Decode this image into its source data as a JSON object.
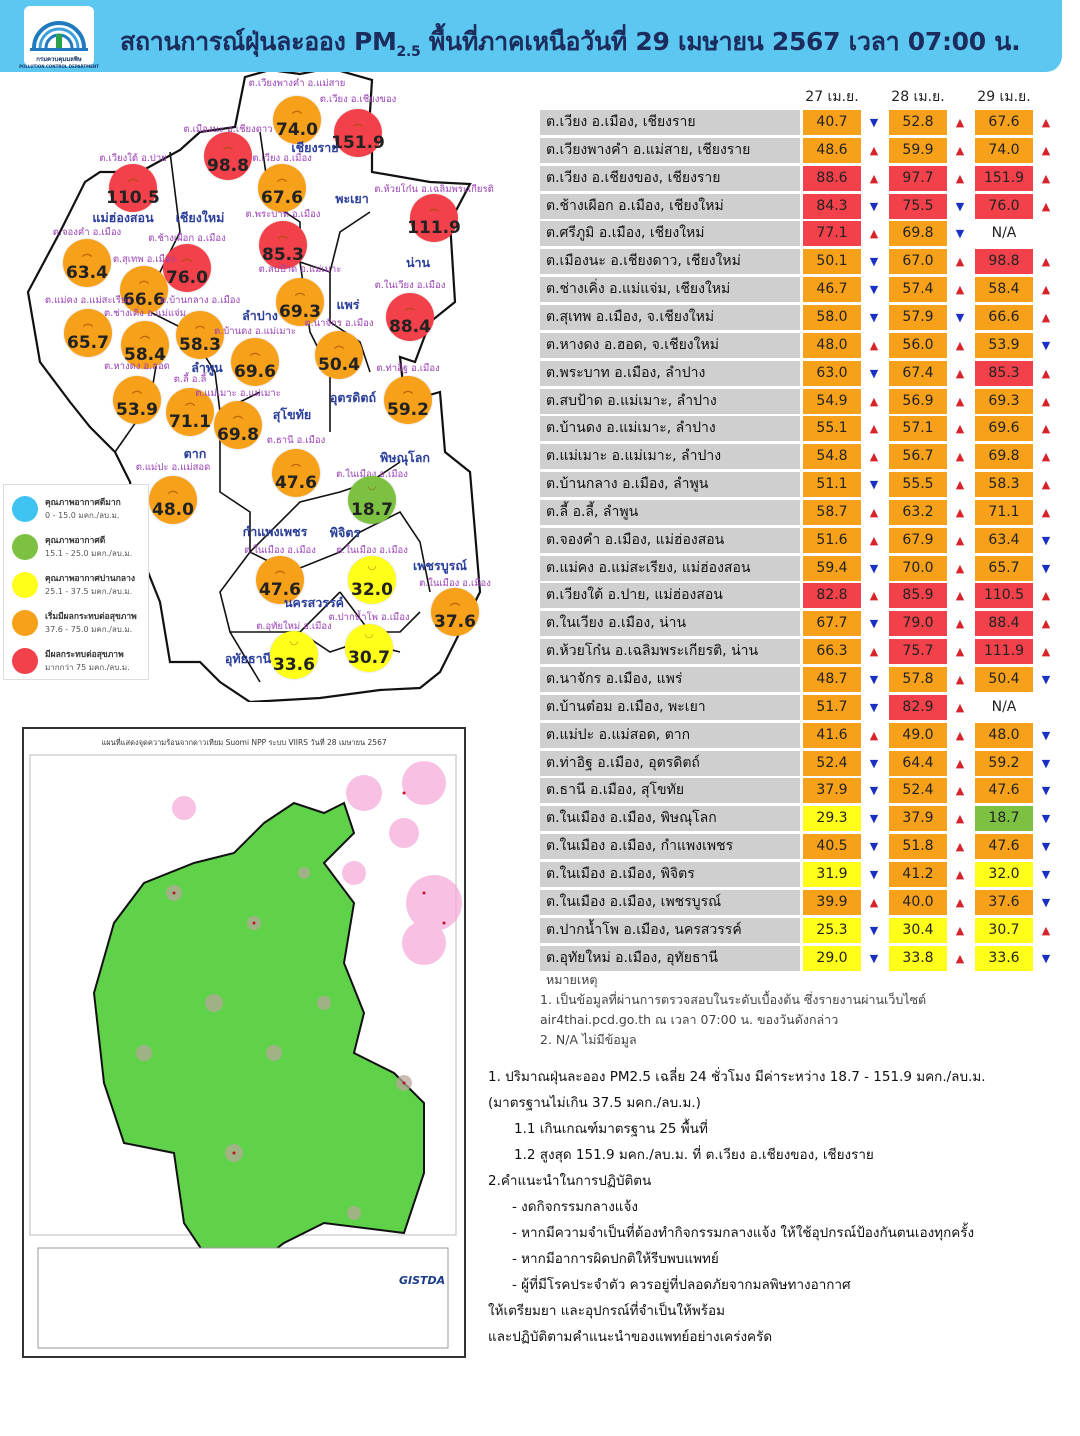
{
  "header": {
    "org": "กรมควบคุมมลพิษ",
    "org_en": "POLLUTION CONTROL DEPARTMENT",
    "title_pre": "สถานการณ์ฝุ่นละออง PM",
    "title_sub": "2.5",
    "title_post": " พื้นที่ภาคเหนือวันที่ 29 เมษายน 2567 เวลา 07:00 น."
  },
  "colors": {
    "very_good": "#3fc3f2",
    "good": "#7cc142",
    "moderate": "#ffff1a",
    "unhealthy_start": "#f7a11a",
    "unhealthy": "#f2414a",
    "banner": "#5cc8f2",
    "row_bg": "#cfcfcf"
  },
  "legend": [
    {
      "title": "คุณภาพอากาศดีมาก",
      "range": "0 - 15.0 มคก./ลบ.ม.",
      "color": "#3fc3f2"
    },
    {
      "title": "คุณภาพอากาศดี",
      "range": "15.1 - 25.0 มคก./ลบ.ม.",
      "color": "#7cc142"
    },
    {
      "title": "คุณภาพอากาศปานกลาง",
      "range": "25.1 - 37.5 มคก./ลบ.ม.",
      "color": "#ffff1a"
    },
    {
      "title": "เริ่มมีผลกระทบต่อสุขภาพ",
      "range": "37.6 - 75.0 มคก./ลบ.ม.",
      "color": "#f7a11a"
    },
    {
      "title": "มีผลกระทบต่อสุขภาพ",
      "range": "มากกว่า 75 มคก./ลบ.ม.",
      "color": "#f2414a"
    }
  ],
  "map": {
    "provinces": [
      "เชียงราย",
      "พะเยา",
      "น่าน",
      "แม่ฮ่องสอน",
      "เชียงใหม่",
      "ลำปาง",
      "แพร่",
      "ลำพูน",
      "อุตรดิตถ์",
      "สุโขทัย",
      "ตาก",
      "พิษณุโลก",
      "กำแพงเพชร",
      "พิจิตร",
      "เพชรบูรณ์",
      "นครสวรรค์",
      "อุทัยธานี"
    ],
    "stations": [
      {
        "label": "ต.เวียงพางคำ อ.แม่สาย",
        "value": "74.0"
      },
      {
        "label": "ต.เวียง อ.เชียงของ",
        "value": "151.9"
      },
      {
        "label": "ต.เมืองนะ อ.เชียงดาว",
        "value": "98.8"
      },
      {
        "label": "ต.เวียงใต้ อ.ปาย",
        "value": "110.5"
      },
      {
        "label": "ต.เวียง อ.เมือง",
        "value": "67.6"
      },
      {
        "label": "ต.ห้วยโก๋น อ.เฉลิมพระเกียรติ",
        "value": "111.9"
      },
      {
        "label": "ต.พระบาท อ.เมือง",
        "value": "85.3"
      },
      {
        "label": "ต.จองคำ อ.เมือง",
        "value": "63.4"
      },
      {
        "label": "ต.ช้างเผือก อ.เมือง",
        "value": "76.0"
      },
      {
        "label": "ต.สุเทพ อ.เมือง",
        "value": "66.6"
      },
      {
        "label": "ต.สบป้าด อ.แม่เมาะ",
        "value": "69.3"
      },
      {
        "label": "ต.ในเวียง อ.เมือง",
        "value": "88.4"
      },
      {
        "label": "ต.แม่คง อ.แม่สะเรียง",
        "value": "65.7"
      },
      {
        "label": "ต.ช่างเคิ่ง อ.แม่แจ่ม",
        "value": "58.4"
      },
      {
        "label": "ต.บ้านกลาง อ.เมือง",
        "value": "58.3"
      },
      {
        "label": "ต.บ้านดง อ.แม่เมาะ",
        "value": "69.6"
      },
      {
        "label": "ต.นาจักร อ.เมือง",
        "value": "50.4"
      },
      {
        "label": "ต.หางดง อ.ฮอด",
        "value": "53.9"
      },
      {
        "label": "ต.ลี้ อ.ลี้",
        "value": "71.1"
      },
      {
        "label": "ต.แม่เมาะ อ.แม่เมาะ",
        "value": "69.8"
      },
      {
        "label": "ต.ท่าอิฐ อ.เมือง",
        "value": "59.2"
      },
      {
        "label": "ต.ธานี อ.เมือง",
        "value": "47.6"
      },
      {
        "label": "ต.แม่ปะ อ.แม่สอด",
        "value": "48.0"
      },
      {
        "label": "ต.ในเมือง อ.เมือง",
        "value": "18.7"
      },
      {
        "label": "ต.ในเมือง อ.เมือง",
        "value": "47.6"
      },
      {
        "label": "ต.ในเมือง อ.เมือง",
        "value": "32.0"
      },
      {
        "label": "ต.ในเมือง อ.เมือง",
        "value": "37.6"
      },
      {
        "label": "ต.อุทัยใหม่ อ.เมือง",
        "value": "33.6"
      },
      {
        "label": "ต.ปากน้ำโพ อ.เมือง",
        "value": "30.7"
      }
    ]
  },
  "satellite": {
    "title": "แผนที่แสดงจุดความร้อนจากดาวเทียม Suomi NPP ระบบ VIIRS  วันที่ 28 เมษายน 2567",
    "brand": "GISTDA"
  },
  "table": {
    "dates": [
      "27 เม.ย.",
      "28 เม.ย.",
      "29 เม.ย."
    ],
    "rows": [
      {
        "name": "ต.เวียง อ.เมือง, เชียงราย",
        "v": [
          "40.7",
          "52.8",
          "67.6"
        ],
        "t": [
          "down",
          "up",
          "up"
        ]
      },
      {
        "name": "ต.เวียงพางคำ อ.แม่สาย, เชียงราย",
        "v": [
          "48.6",
          "59.9",
          "74.0"
        ],
        "t": [
          "up",
          "up",
          "up"
        ]
      },
      {
        "name": "ต.เวียง อ.เชียงของ, เชียงราย",
        "v": [
          "88.6",
          "97.7",
          "151.9"
        ],
        "t": [
          "up",
          "up",
          "up"
        ]
      },
      {
        "name": "ต.ช้างเผือก อ.เมือง, เชียงใหม่",
        "v": [
          "84.3",
          "75.5",
          "76.0"
        ],
        "t": [
          "down",
          "down",
          "up"
        ]
      },
      {
        "name": "ต.ศรีภูมิ อ.เมือง, เชียงใหม่",
        "v": [
          "77.1",
          "69.8",
          "N/A"
        ],
        "t": [
          "up",
          "down",
          ""
        ]
      },
      {
        "name": "ต.เมืองนะ อ.เชียงดาว, เชียงใหม่",
        "v": [
          "50.1",
          "67.0",
          "98.8"
        ],
        "t": [
          "down",
          "up",
          "up"
        ]
      },
      {
        "name": "ต.ช่างเคิ่ง อ.แม่แจ่ม, เชียงใหม่",
        "v": [
          "46.7",
          "57.4",
          "58.4"
        ],
        "t": [
          "down",
          "up",
          "up"
        ]
      },
      {
        "name": "ต.สุเทพ  อ.เมือง, จ.เชียงใหม่",
        "v": [
          "58.0",
          "57.9",
          "66.6"
        ],
        "t": [
          "down",
          "down",
          "up"
        ]
      },
      {
        "name": "ต.หางดง อ.ฮอด, จ.เชียงใหม่",
        "v": [
          "48.0",
          "56.0",
          "53.9"
        ],
        "t": [
          "up",
          "up",
          "down"
        ]
      },
      {
        "name": "ต.พระบาท อ.เมือง, ลำปาง",
        "v": [
          "63.0",
          "67.4",
          "85.3"
        ],
        "t": [
          "down",
          "up",
          "up"
        ]
      },
      {
        "name": "ต.สบป้าด อ.แม่เมาะ, ลำปาง",
        "v": [
          "54.9",
          "56.9",
          "69.3"
        ],
        "t": [
          "up",
          "up",
          "up"
        ]
      },
      {
        "name": "ต.บ้านดง อ.แม่เมาะ, ลำปาง",
        "v": [
          "55.1",
          "57.1",
          "69.6"
        ],
        "t": [
          "up",
          "up",
          "up"
        ]
      },
      {
        "name": "ต.แม่เมาะ อ.แม่เมาะ, ลำปาง",
        "v": [
          "54.8",
          "56.7",
          "69.8"
        ],
        "t": [
          "up",
          "up",
          "up"
        ]
      },
      {
        "name": "ต.บ้านกลาง อ.เมือง, ลำพูน",
        "v": [
          "51.1",
          "55.5",
          "58.3"
        ],
        "t": [
          "down",
          "up",
          "up"
        ]
      },
      {
        "name": "ต.ลี้ อ.ลี้, ลำพูน",
        "v": [
          "58.7",
          "63.2",
          "71.1"
        ],
        "t": [
          "up",
          "up",
          "up"
        ]
      },
      {
        "name": "ต.จองคำ อ.เมือง, แม่ฮ่องสอน",
        "v": [
          "51.6",
          "67.9",
          "63.4"
        ],
        "t": [
          "up",
          "up",
          "down"
        ]
      },
      {
        "name": "ต.แม่คง อ.แม่สะเรียง, แม่ฮ่องสอน",
        "v": [
          "59.4",
          "70.0",
          "65.7"
        ],
        "t": [
          "down",
          "up",
          "down"
        ]
      },
      {
        "name": "ต.เวียงใต้ อ.ปาย, แม่ฮ่องสอน",
        "v": [
          "82.8",
          "85.9",
          "110.5"
        ],
        "t": [
          "up",
          "up",
          "up"
        ]
      },
      {
        "name": "ต.ในเวียง อ.เมือง, น่าน",
        "v": [
          "67.7",
          "79.0",
          "88.4"
        ],
        "t": [
          "down",
          "up",
          "up"
        ]
      },
      {
        "name": "ต.ห้วยโก๋น อ.เฉลิมพระเกียรติ, น่าน",
        "v": [
          "66.3",
          "75.7",
          "111.9"
        ],
        "t": [
          "up",
          "up",
          "up"
        ]
      },
      {
        "name": "ต.นาจักร อ.เมือง, แพร่",
        "v": [
          "48.7",
          "57.8",
          "50.4"
        ],
        "t": [
          "down",
          "up",
          "down"
        ]
      },
      {
        "name": "ต.บ้านต๋อม อ.เมือง, พะเยา",
        "v": [
          "51.7",
          "82.9",
          "N/A"
        ],
        "t": [
          "down",
          "up",
          ""
        ]
      },
      {
        "name": "ต.แม่ปะ อ.แม่สอด, ตาก",
        "v": [
          "41.6",
          "49.0",
          "48.0"
        ],
        "t": [
          "up",
          "up",
          "down"
        ]
      },
      {
        "name": "ต.ท่าอิฐ อ.เมือง, อุตรดิตถ์",
        "v": [
          "52.4",
          "64.4",
          "59.2"
        ],
        "t": [
          "down",
          "up",
          "down"
        ]
      },
      {
        "name": "ต.ธานี อ.เมือง, สุโขทัย",
        "v": [
          "37.9",
          "52.4",
          "47.6"
        ],
        "t": [
          "down",
          "up",
          "down"
        ]
      },
      {
        "name": "ต.ในเมือง อ.เมือง, พิษณุโลก",
        "v": [
          "29.3",
          "37.9",
          "18.7"
        ],
        "t": [
          "down",
          "up",
          "down"
        ]
      },
      {
        "name": "ต.ในเมือง อ.เมือง, กำแพงเพชร",
        "v": [
          "40.5",
          "51.8",
          "47.6"
        ],
        "t": [
          "down",
          "up",
          "down"
        ]
      },
      {
        "name": "ต.ในเมือง อ.เมือง, พิจิตร",
        "v": [
          "31.9",
          "41.2",
          "32.0"
        ],
        "t": [
          "down",
          "up",
          "down"
        ]
      },
      {
        "name": "ต.ในเมือง อ.เมือง, เพชรบูรณ์",
        "v": [
          "39.9",
          "40.0",
          "37.6"
        ],
        "t": [
          "up",
          "up",
          "down"
        ]
      },
      {
        "name": "ต.ปากน้ำโพ อ.เมือง, นครสวรรค์",
        "v": [
          "25.3",
          "30.4",
          "30.7"
        ],
        "t": [
          "down",
          "up",
          "up"
        ]
      },
      {
        "name": "ต.อุทัยใหม่ อ.เมือง, อุทัยธานี",
        "v": [
          "29.0",
          "33.8",
          "33.6"
        ],
        "t": [
          "down",
          "up",
          "down"
        ]
      }
    ]
  },
  "notes": {
    "heading": "หมายเหตุ",
    "line1": "1. เป็นข้อมูลที่ผ่านการตรวจสอบในระดับเบื้องต้น  ซึ่งรายงานผ่านเว็บไซต์",
    "line2": "air4thai.pcd.go.th  ณ  เวลา 07:00  น.  ของวันดังกล่าว",
    "line3": "2.  N/A  ไม่มีข้อมูล"
  },
  "summary": {
    "s1": "1. ปริมาณฝุ่นละออง PM2.5 เฉลี่ย 24 ชั่วโมง มีค่าระหว่าง 18.7 - 151.9 มคก./ลบ.ม.",
    "s1b": "(มาตรฐานไม่เกิน 37.5 มคก./ลบ.ม.)",
    "s11": "1.1 เกินเกณฑ์มาตรฐาน 25 พื้นที่",
    "s12": "1.2 สูงสุด 151.9 มคก./ลบ.ม. ที่ ต.เวียง อ.เชียงของ, เชียงราย",
    "s2": "2.คำแนะนำในการปฏิบัติตน",
    "bullets": [
      "-  งดกิจกรรมกลางแจ้ง",
      "-  หากมีความจำเป็นที่ต้องทำกิจกรรมกลางแจ้ง  ให้ใช้อุปกรณ์ป้องกันตนเองทุกครั้ง",
      "-  หากมีอาการผิดปกติให้รีบพบแพทย์",
      "-  ผู้ที่มีโรคประจำตัว  ควรอยู่ที่ปลอดภัยจากมลพิษทางอากาศ"
    ],
    "e1": "ให้เตรียมยา  และอุปกรณ์ที่จำเป็นให้พร้อม",
    "e2": "และปฏิบัติตามคำแนะนำของแพทย์อย่างเคร่งครัด"
  }
}
